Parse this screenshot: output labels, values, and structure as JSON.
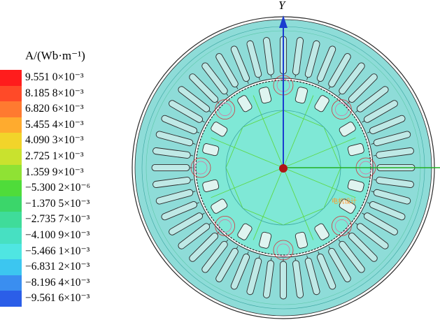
{
  "legend": {
    "title": "A/(Wb·m⁻¹)",
    "entries": [
      {
        "label": "9.551 0×10⁻³",
        "color": "#ff1c1c"
      },
      {
        "label": "8.185 8×10⁻³",
        "color": "#ff4a28"
      },
      {
        "label": "6.820 6×10⁻³",
        "color": "#ff7a30"
      },
      {
        "label": "5.455 4×10⁻³",
        "color": "#ffab2e"
      },
      {
        "label": "4.090 3×10⁻³",
        "color": "#f2d42a"
      },
      {
        "label": "2.725 1×10⁻³",
        "color": "#c9e22e"
      },
      {
        "label": "1.359 9×10⁻³",
        "color": "#8fe234"
      },
      {
        "label": "−5.300 2×10⁻⁶",
        "color": "#4fdc3a"
      },
      {
        "label": "−1.370 5×10⁻³",
        "color": "#3bd66a"
      },
      {
        "label": "−2.735 7×10⁻³",
        "color": "#3fdc9a"
      },
      {
        "label": "−4.100 9×10⁻³",
        "color": "#47e0c2"
      },
      {
        "label": "−5.466 1×10⁻³",
        "color": "#4fe6e2"
      },
      {
        "label": "−6.831 2×10⁻³",
        "color": "#3cc6f0"
      },
      {
        "label": "−8.196 4×10⁻³",
        "color": "#3a8ef0"
      },
      {
        "label": "−9.561 6×10⁻³",
        "color": "#2b5ee8"
      }
    ]
  },
  "diagram": {
    "y_axis_label": "Y",
    "watermark": "电机设计",
    "colors": {
      "background_field": "#7fe3dc",
      "stator_field": "#8edcd8",
      "rotor_field": "#7fe8d6",
      "outline": "#2a2a2a",
      "y_axis": "#1a3ccf",
      "x_axis": "#22b022",
      "origin": "#b01515",
      "flux_line": "#5ed84a",
      "flux_line_red": "#d0343a"
    },
    "stator_slots": 48,
    "rotor_poles": 8
  }
}
